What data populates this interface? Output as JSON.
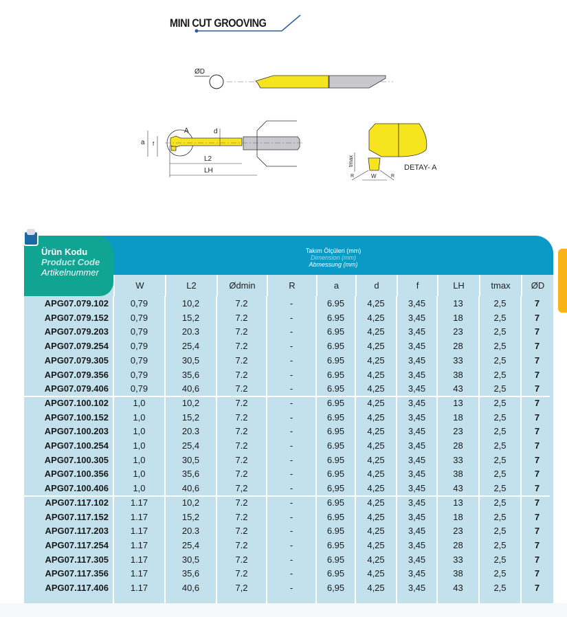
{
  "title": "MINI CUT GROOVING",
  "drawing_labels": {
    "od": "ØD",
    "a_circle": "A",
    "d": "d",
    "a": "a",
    "f": "f",
    "l2": "L2",
    "lh": "LH",
    "tmax": "tmax",
    "w": "W",
    "r": "R",
    "detail": "DETAY- A"
  },
  "colors": {
    "header_blue": "#0b9ac5",
    "product_green": "#0fa592",
    "table_bg": "#c2e1ec",
    "tool_yellow": "#f5e41e",
    "shank_gray": "#c8c8cc",
    "side_tab": "#f8b319"
  },
  "table": {
    "product_header": {
      "tr": "Ürün Kodu",
      "en": "Product Code",
      "de": "Artikelnummer"
    },
    "dimension_header": {
      "tr": "Takım Ölçüleri (mm)",
      "en": "Dimension (mm)",
      "de": "Abmessung (mm)"
    },
    "columns": [
      "W",
      "L2",
      "Ødmin",
      "R",
      "a",
      "d",
      "f",
      "LH",
      "tmax",
      "ØD"
    ],
    "rows": [
      [
        "APG07.079.102",
        "0,79",
        "10,2",
        "7.2",
        "-",
        "6.95",
        "4,25",
        "3,45",
        "13",
        "2,5",
        "7"
      ],
      [
        "APG07.079.152",
        "0,79",
        "15,2",
        "7.2",
        "-",
        "6.95",
        "4,25",
        "3,45",
        "18",
        "2,5",
        "7"
      ],
      [
        "APG07.079.203",
        "0,79",
        "20.3",
        "7.2",
        "-",
        "6.95",
        "4,25",
        "3,45",
        "23",
        "2,5",
        "7"
      ],
      [
        "APG07.079.254",
        "0,79",
        "25,4",
        "7.2",
        "-",
        "6.95",
        "4,25",
        "3,45",
        "28",
        "2,5",
        "7"
      ],
      [
        "APG07.079.305",
        "0,79",
        "30,5",
        "7.2",
        "-",
        "6.95",
        "4,25",
        "3,45",
        "33",
        "2,5",
        "7"
      ],
      [
        "APG07.079.356",
        "0,79",
        "35,6",
        "7.2",
        "-",
        "6.95",
        "4,25",
        "3,45",
        "38",
        "2,5",
        "7"
      ],
      [
        "APG07.079.406",
        "0,79",
        "40,6",
        "7.2",
        "-",
        "6.95",
        "4,25",
        "3,45",
        "43",
        "2,5",
        "7"
      ],
      [
        "APG07.100.102",
        "1,0",
        "10,2",
        "7.2",
        "-",
        "6.95",
        "4,25",
        "3,45",
        "13",
        "2,5",
        "7"
      ],
      [
        "APG07.100.152",
        "1,0",
        "15,2",
        "7.2",
        "-",
        "6.95",
        "4,25",
        "3,45",
        "18",
        "2,5",
        "7"
      ],
      [
        "APG07.100.203",
        "1,0",
        "20.3",
        "7.2",
        "-",
        "6.95",
        "4,25",
        "3,45",
        "23",
        "2,5",
        "7"
      ],
      [
        "APG07.100.254",
        "1,0",
        "25,4",
        "7.2",
        "-",
        "6.95",
        "4,25",
        "3,45",
        "28",
        "2,5",
        "7"
      ],
      [
        "APG07.100.305",
        "1,0",
        "30,5",
        "7.2",
        "-",
        "6.95",
        "4,25",
        "3,45",
        "33",
        "2,5",
        "7"
      ],
      [
        "APG07.100.356",
        "1,0",
        "35,6",
        "7.2",
        "-",
        "6.95",
        "4,25",
        "3,45",
        "38",
        "2,5",
        "7"
      ],
      [
        "APG07.100.406",
        "1,0",
        "40,6",
        "7,2",
        "-",
        "6,95",
        "4,25",
        "3,45",
        "43",
        "2,5",
        "7"
      ],
      [
        "APG07.117.102",
        "1.17",
        "10,2",
        "7.2",
        "-",
        "6.95",
        "4,25",
        "3,45",
        "13",
        "2,5",
        "7"
      ],
      [
        "APG07.117.152",
        "1.17",
        "15,2",
        "7.2",
        "-",
        "6.95",
        "4,25",
        "3,45",
        "18",
        "2,5",
        "7"
      ],
      [
        "APG07.117.203",
        "1.17",
        "20.3",
        "7.2",
        "-",
        "6.95",
        "4,25",
        "3,45",
        "23",
        "2,5",
        "7"
      ],
      [
        "APG07.117.254",
        "1.17",
        "25,4",
        "7.2",
        "-",
        "6.95",
        "4,25",
        "3,45",
        "28",
        "2,5",
        "7"
      ],
      [
        "APG07.117.305",
        "1.17",
        "30,5",
        "7.2",
        "-",
        "6.95",
        "4,25",
        "3,45",
        "33",
        "2,5",
        "7"
      ],
      [
        "APG07.117.356",
        "1.17",
        "35,6",
        "7.2",
        "-",
        "6.95",
        "4,25",
        "3,45",
        "38",
        "2,5",
        "7"
      ],
      [
        "APG07.117.406",
        "1.17",
        "40,6",
        "7,2",
        "-",
        "6,95",
        "4,25",
        "3,45",
        "43",
        "2,5",
        "7"
      ]
    ]
  }
}
